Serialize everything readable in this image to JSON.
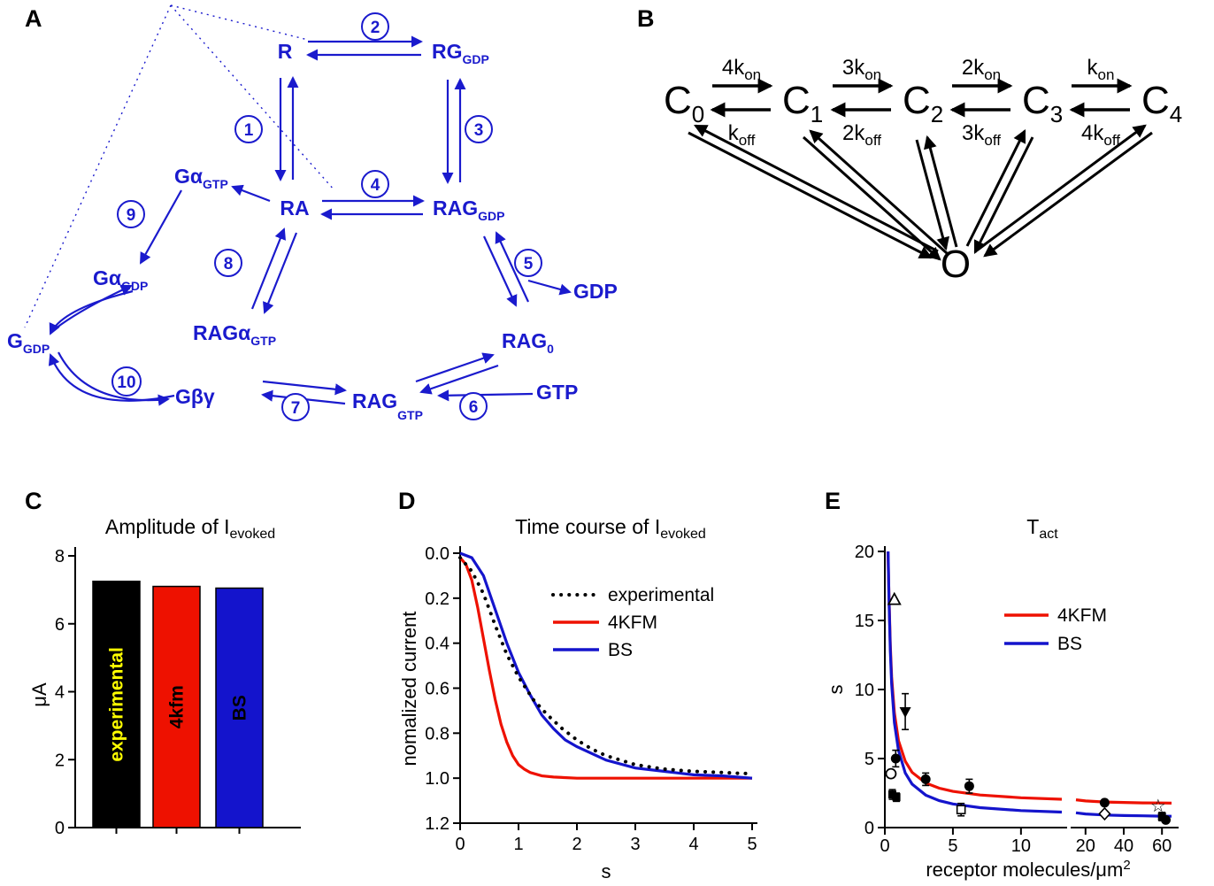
{
  "panelA": {
    "label": "A",
    "color": "#1a1acd",
    "nodes": {
      "r": "R",
      "rg_main": "RG",
      "rg_sub": "GDP",
      "ra": "RA",
      "rag_gdp_main": "RAG",
      "rag_gdp_sub": "GDP",
      "ga_gtp_main": "Gα",
      "ga_gtp_sub": "GTP",
      "ga_gdp_main": "Gα",
      "ga_gdp_sub": "GDP",
      "g_gdp_main": "G",
      "g_gdp_sub": "GDP",
      "raga_gtp_main": "RAGα",
      "raga_gtp_sub": "GTP",
      "gbg": "Gβγ",
      "rag_gtp_main": "RAG",
      "rag_gtp_sub": "GTP",
      "rag0_main": "RAG",
      "rag0_sub": "0",
      "gtp": "GTP",
      "gdp": "GDP"
    },
    "steps": [
      "1",
      "2",
      "3",
      "4",
      "5",
      "6",
      "7",
      "8",
      "9",
      "10"
    ]
  },
  "panelB": {
    "label": "B",
    "open_state": "O",
    "states": [
      {
        "main": "C",
        "sub": "0"
      },
      {
        "main": "C",
        "sub": "1"
      },
      {
        "main": "C",
        "sub": "2"
      },
      {
        "main": "C",
        "sub": "3"
      },
      {
        "main": "C",
        "sub": "4"
      }
    ],
    "rates_on": [
      {
        "main": "4k",
        "sub": "on"
      },
      {
        "main": "3k",
        "sub": "on"
      },
      {
        "main": "2k",
        "sub": "on"
      },
      {
        "main": "k",
        "sub": "on"
      }
    ],
    "rates_off": [
      {
        "main": "k",
        "sub": "off"
      },
      {
        "main": "2k",
        "sub": "off"
      },
      {
        "main": "3k",
        "sub": "off"
      },
      {
        "main": "4k",
        "sub": "off"
      }
    ]
  },
  "chart_data": [
    {
      "id": "C",
      "panel_label": "C",
      "type": "bar",
      "title_main": "Amplitude of I",
      "title_sub": "evoked",
      "ylabel": "μA",
      "ylim": [
        0,
        8
      ],
      "yticks": [
        0,
        2,
        4,
        6,
        8
      ],
      "categories": [
        "experimental",
        "4kfm",
        "BS"
      ],
      "values": [
        7.25,
        7.1,
        7.05
      ],
      "bar_colors": [
        "#000000",
        "#ee1100",
        "#1414cc"
      ],
      "bar_label_colors": [
        "#ffff00",
        "#000000",
        "#000000"
      ]
    },
    {
      "id": "D",
      "panel_label": "D",
      "type": "line",
      "title_main": "Time course of I",
      "title_sub": "evoked",
      "ylabel": "nomalized current",
      "xlabel": "s",
      "xlim": [
        0,
        5
      ],
      "ylim_bottom": 1.2,
      "yticks": [
        0,
        0.2,
        0.4,
        0.6,
        0.8,
        1,
        1.2
      ],
      "xticks": [
        0,
        1,
        2,
        3,
        4,
        5
      ],
      "legend": [
        {
          "label": "experimental",
          "style": "dotted",
          "color": "#000000"
        },
        {
          "label": "4KFM",
          "style": "solid",
          "color": "#ee1100"
        },
        {
          "label": "BS",
          "style": "solid",
          "color": "#1414cc"
        }
      ],
      "series": [
        {
          "name": "4KFM",
          "style": "solid",
          "color": "#ee1100",
          "x": [
            0,
            0.1,
            0.2,
            0.3,
            0.4,
            0.5,
            0.6,
            0.7,
            0.8,
            0.9,
            1.0,
            1.1,
            1.2,
            1.4,
            1.6,
            2.0,
            2.5,
            3.0,
            4.0,
            5.0
          ],
          "y": [
            0.02,
            0.05,
            0.12,
            0.24,
            0.38,
            0.52,
            0.65,
            0.76,
            0.84,
            0.9,
            0.94,
            0.96,
            0.975,
            0.99,
            0.995,
            1.0,
            1.0,
            1.0,
            1.0,
            1.0
          ]
        },
        {
          "name": "BS",
          "style": "solid",
          "color": "#1414cc",
          "x": [
            0,
            0.2,
            0.4,
            0.6,
            0.8,
            1.0,
            1.2,
            1.4,
            1.6,
            1.8,
            2.0,
            2.5,
            3.0,
            3.5,
            4.0,
            4.5,
            5.0
          ],
          "y": [
            0.0,
            0.02,
            0.1,
            0.25,
            0.4,
            0.53,
            0.63,
            0.72,
            0.78,
            0.83,
            0.86,
            0.92,
            0.955,
            0.97,
            0.985,
            0.99,
            1.0
          ]
        },
        {
          "name": "experimental",
          "style": "dotted",
          "color": "#000000",
          "x": [
            0,
            0.2,
            0.4,
            0.6,
            0.8,
            1.0,
            1.25,
            1.5,
            1.75,
            2.0,
            2.25,
            2.5,
            2.75,
            3.0,
            3.25,
            3.5,
            3.75,
            4.0,
            4.25,
            4.5,
            4.75,
            5.0
          ],
          "y": [
            0.02,
            0.08,
            0.18,
            0.32,
            0.45,
            0.55,
            0.65,
            0.72,
            0.78,
            0.83,
            0.87,
            0.9,
            0.92,
            0.94,
            0.95,
            0.96,
            0.965,
            0.97,
            0.972,
            0.975,
            0.978,
            0.98
          ]
        }
      ]
    },
    {
      "id": "E",
      "panel_label": "E",
      "type": "scatter",
      "title_main": "T",
      "title_sub": "act",
      "ylabel": "s",
      "xlabel_main": "receptor molecules/μm",
      "xlabel_sup": "2",
      "ylim": [
        0,
        20
      ],
      "yticks": [
        0,
        5,
        10,
        15,
        20
      ],
      "x_segments": [
        {
          "range": [
            0,
            13
          ],
          "ticks": [
            0,
            5,
            10
          ]
        },
        {
          "range": [
            15,
            65
          ],
          "ticks": [
            20,
            40,
            60
          ]
        }
      ],
      "star_glyph": "☆",
      "legend": [
        {
          "label": "4KFM",
          "color": "#ee1100"
        },
        {
          "label": "BS",
          "color": "#1414cc"
        }
      ],
      "curves": [
        {
          "name": "4KFM",
          "color": "#ee1100",
          "x": [
            0.23,
            0.3,
            0.4,
            0.5,
            0.7,
            1.0,
            1.5,
            2.0,
            3.0,
            4.0,
            5.0,
            7.0,
            10.0,
            13.0,
            15.0,
            20.0,
            30.0,
            40.0,
            50.0,
            60.0,
            65.0
          ],
          "y": [
            21.7,
            17.0,
            13.2,
            10.9,
            8.3,
            6.3,
            4.8,
            4.0,
            3.23,
            2.85,
            2.62,
            2.36,
            2.16,
            2.05,
            2.01,
            1.93,
            1.85,
            1.82,
            1.79,
            1.78,
            1.77
          ]
        },
        {
          "name": "BS",
          "color": "#1414cc",
          "x": [
            0.24,
            0.3,
            0.4,
            0.5,
            0.7,
            1.0,
            1.5,
            2.0,
            3.0,
            4.0,
            5.0,
            7.0,
            10.0,
            13.0,
            15.0,
            20.0,
            30.0,
            40.0,
            50.0,
            60.0,
            65.0
          ],
          "y": [
            20.8,
            16.8,
            12.8,
            10.4,
            7.6,
            5.6,
            3.95,
            3.15,
            2.35,
            1.95,
            1.71,
            1.44,
            1.23,
            1.12,
            1.07,
            0.99,
            0.91,
            0.87,
            0.85,
            0.83,
            0.82
          ]
        }
      ],
      "points": [
        {
          "symbol": "triangle-up-open",
          "x": 0.7,
          "y": 16.5
        },
        {
          "symbol": "triangle-down-filled",
          "x": 1.5,
          "y": 8.4,
          "err": 1.3
        },
        {
          "symbol": "circle-filled",
          "x": 0.8,
          "y": 5.0,
          "err": 0.6
        },
        {
          "symbol": "circle-open",
          "x": 0.45,
          "y": 3.9
        },
        {
          "symbol": "square-filled",
          "x": 0.55,
          "y": 2.4,
          "err": 0.35
        },
        {
          "symbol": "square-filled",
          "x": 0.85,
          "y": 2.2,
          "err": 0.3
        },
        {
          "symbol": "circle-filled",
          "x": 3.0,
          "y": 3.5,
          "err": 0.45
        },
        {
          "symbol": "circle-filled",
          "x": 6.2,
          "y": 3.0,
          "err": 0.5
        },
        {
          "symbol": "square-open",
          "x": 5.6,
          "y": 1.3,
          "err": 0.45
        },
        {
          "symbol": "circle-filled",
          "x": 30,
          "y": 1.8
        },
        {
          "symbol": "diamond-open",
          "x": 30,
          "y": 1.0
        },
        {
          "symbol": "star-open",
          "x": 58,
          "y": 1.55
        },
        {
          "symbol": "square-filled",
          "x": 60,
          "y": 0.8,
          "err": 0.3
        },
        {
          "symbol": "circle-filled",
          "x": 62,
          "y": 0.55
        }
      ]
    }
  ]
}
